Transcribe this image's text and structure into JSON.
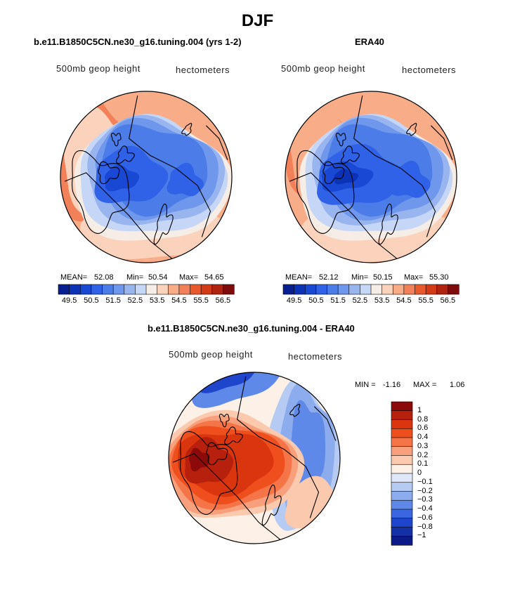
{
  "figure": {
    "title": "DJF"
  },
  "chart_data": [
    {
      "type": "heatmap",
      "panel_title": "b.e11.B1850C5CN.ne30_g16.tuning.004 (yrs 1-2)",
      "variable_label": "500mb geop height",
      "units_label": "hectometers",
      "projection": "north polar stereographic",
      "stats": {
        "mean_label": "MEAN=",
        "mean": "52.08",
        "min_label": "Min=",
        "min": "50.54",
        "max_label": "Max=",
        "max": "54.65"
      },
      "colorbar": {
        "orientation": "horizontal",
        "tick_labels": [
          "49.5",
          "50.5",
          "51.5",
          "52.5",
          "53.5",
          "54.5",
          "55.5",
          "56.5"
        ],
        "levels": [
          49.5,
          50,
          50.5,
          51,
          51.5,
          52,
          52.5,
          53,
          53.5,
          54,
          54.5,
          55,
          55.5,
          56,
          56.5
        ],
        "colors": [
          "#0a1f8f",
          "#0c33b6",
          "#1848d4",
          "#2f62e6",
          "#4c7ce8",
          "#6f97ec",
          "#98b5f0",
          "#c6d6f6",
          "#f6eee6",
          "#fbd3bc",
          "#f8ac88",
          "#f2815a",
          "#e85a2c",
          "#d33a16",
          "#b0230e",
          "#7f0c0c"
        ]
      }
    },
    {
      "type": "heatmap",
      "panel_title": "ERA40",
      "variable_label": "500mb geop height",
      "units_label": "hectometers",
      "projection": "north polar stereographic",
      "stats": {
        "mean_label": "MEAN=",
        "mean": "52.12",
        "min_label": "Min=",
        "min": "50.15",
        "max_label": "Max=",
        "max": "55.30"
      },
      "colorbar": {
        "orientation": "horizontal",
        "tick_labels": [
          "49.5",
          "50.5",
          "51.5",
          "52.5",
          "53.5",
          "54.5",
          "55.5",
          "56.5"
        ],
        "levels": [
          49.5,
          50,
          50.5,
          51,
          51.5,
          52,
          52.5,
          53,
          53.5,
          54,
          54.5,
          55,
          55.5,
          56,
          56.5
        ],
        "colors": [
          "#0a1f8f",
          "#0c33b6",
          "#1848d4",
          "#2f62e6",
          "#4c7ce8",
          "#6f97ec",
          "#98b5f0",
          "#c6d6f6",
          "#f6eee6",
          "#fbd3bc",
          "#f8ac88",
          "#f2815a",
          "#e85a2c",
          "#d33a16",
          "#b0230e",
          "#7f0c0c"
        ]
      }
    },
    {
      "type": "heatmap",
      "panel_title": "b.e11.B1850C5CN.ne30_g16.tuning.004 - ERA40",
      "variable_label": "500mb geop height",
      "units_label": "hectometers",
      "projection": "north polar stereographic",
      "stats": {
        "min_label": "MIN =",
        "min": "-1.16",
        "max_label": "MAX =",
        "max": "1.06"
      },
      "colorbar": {
        "orientation": "vertical",
        "tick_labels": [
          "1",
          "0.8",
          "0.6",
          "0.4",
          "0.3",
          "0.2",
          "0.1",
          "0",
          "−0.1",
          "−0.2",
          "−0.3",
          "−0.4",
          "−0.6",
          "−0.8",
          "−1"
        ],
        "levels": [
          1,
          0.8,
          0.6,
          0.4,
          0.3,
          0.2,
          0.1,
          0,
          -0.1,
          -0.2,
          -0.3,
          -0.4,
          -0.6,
          -0.8,
          -1
        ],
        "colors_top_to_bottom": [
          "#8c0a0a",
          "#b7200c",
          "#d9350f",
          "#ee4f1d",
          "#f57448",
          "#f8a07c",
          "#fbc9ad",
          "#fdf0e6",
          "#dfe8f8",
          "#b5cbf3",
          "#8cacee",
          "#5f89e8",
          "#3a66e0",
          "#1f45cc",
          "#1430a6",
          "#0a1a86"
        ]
      }
    }
  ]
}
